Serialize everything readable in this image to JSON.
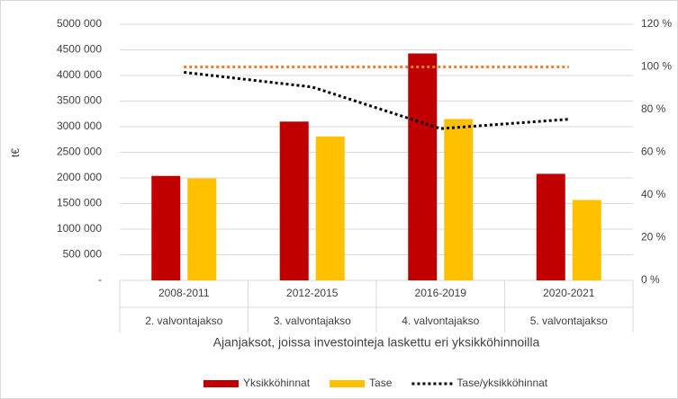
{
  "chart_data": {
    "type": "bar_line",
    "categories": [
      "2008-2011",
      "2012-2015",
      "2016-2019",
      "2020-2021"
    ],
    "periods": [
      "2. valvontajakso",
      "3. valvontajakso",
      "4. valvontajakso",
      "5. valvontajakso"
    ],
    "xlabel": "Ajanjaksot, joissa investointeja laskettu eri yksikköhinnoilla",
    "ylabel": "t€",
    "series": [
      {
        "name": "Yksikköhinnat",
        "color": "#c00000",
        "type": "bar",
        "values": [
          2040000,
          3100000,
          4430000,
          2080000
        ]
      },
      {
        "name": "Tase",
        "color": "#ffc000",
        "type": "bar",
        "values": [
          1990000,
          2810000,
          3150000,
          1570000
        ]
      },
      {
        "name": "Tase/yksikköhinnat",
        "color": "#000000",
        "type": "line",
        "axis": "y2",
        "values": [
          97.5,
          90.6,
          71.1,
          75.5
        ]
      }
    ],
    "reference_line": {
      "value": 100,
      "color": "#ed7d31",
      "axis": "y2"
    },
    "ylim": [
      0,
      5000000
    ],
    "yticks": [
      {
        "value": 0,
        "label": "-"
      },
      {
        "value": 500000,
        "label": "500 000"
      },
      {
        "value": 1000000,
        "label": "1000 000"
      },
      {
        "value": 1500000,
        "label": "1500 000"
      },
      {
        "value": 2000000,
        "label": "2000 000"
      },
      {
        "value": 2500000,
        "label": "2500 000"
      },
      {
        "value": 3000000,
        "label": "3000 000"
      },
      {
        "value": 3500000,
        "label": "3500 000"
      },
      {
        "value": 4000000,
        "label": "4000 000"
      },
      {
        "value": 4500000,
        "label": "4500 000"
      },
      {
        "value": 5000000,
        "label": "5000 000"
      }
    ],
    "y2lim": [
      0,
      120
    ],
    "y2ticks": [
      {
        "value": 0,
        "label": "0 %"
      },
      {
        "value": 20,
        "label": "20 %"
      },
      {
        "value": 40,
        "label": "40 %"
      },
      {
        "value": 60,
        "label": "60 %"
      },
      {
        "value": 80,
        "label": "80 %"
      },
      {
        "value": 100,
        "label": "100 %"
      },
      {
        "value": 120,
        "label": "120 %"
      }
    ],
    "grid": true,
    "legend": "bottom"
  }
}
